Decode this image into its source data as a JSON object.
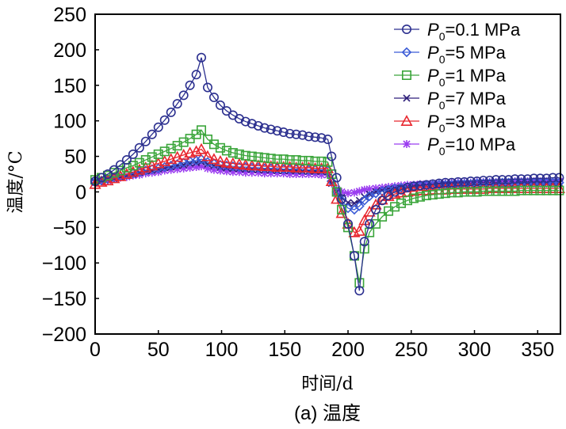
{
  "chart_data": {
    "type": "line",
    "title": "",
    "caption": "(a) 温度",
    "xlabel": "时间/d",
    "ylabel": "温度/°C",
    "xlim": [
      0,
      368
    ],
    "ylim": [
      -200,
      250
    ],
    "xticks": [
      0,
      50,
      100,
      150,
      200,
      250,
      300,
      350
    ],
    "xtick_labels": [
      "0",
      "50",
      "100",
      "150",
      "200",
      "250",
      "300",
      "350"
    ],
    "yticks": [
      250,
      200,
      150,
      100,
      50,
      0,
      -50,
      -100,
      -150,
      -200
    ],
    "ytick_labels": [
      "250",
      "200",
      "150",
      "100",
      "50",
      "0",
      "−50",
      "−100",
      "−150",
      "−200"
    ],
    "grid": false,
    "legend_position": "top-right",
    "x": [
      0,
      5,
      10,
      15,
      20,
      25,
      30,
      35,
      40,
      45,
      50,
      55,
      60,
      65,
      70,
      75,
      80,
      84,
      89,
      94,
      99,
      104,
      109,
      114,
      119,
      124,
      129,
      134,
      139,
      144,
      149,
      154,
      159,
      164,
      169,
      174,
      179,
      184,
      187,
      191,
      195,
      200,
      205,
      209,
      213,
      217,
      222,
      227,
      232,
      237,
      242,
      247,
      252,
      257,
      262,
      267,
      272,
      277,
      282,
      287,
      292,
      297,
      302,
      307,
      312,
      317,
      322,
      327,
      332,
      337,
      342,
      347,
      352,
      357,
      362,
      367
    ],
    "series": [
      {
        "name": "P0=0.1 MPa",
        "legend_main": "P",
        "legend_sub": "0",
        "legend_rest": "=0.1 MPa",
        "color": "#2b2f8f",
        "marker": "circle",
        "values": [
          15,
          20,
          25,
          31,
          38,
          45,
          53,
          62,
          71,
          81,
          91,
          101,
          112,
          124,
          136,
          150,
          165,
          189,
          147,
          133,
          122,
          114,
          108,
          103,
          99,
          96,
          93,
          90,
          88,
          86,
          84,
          82,
          81,
          80,
          78,
          77,
          76,
          74,
          50,
          20,
          -10,
          -45,
          -90,
          -139,
          -70,
          -45,
          -25,
          -12,
          -5,
          0,
          3,
          6,
          8,
          9,
          10,
          11,
          12,
          13,
          13,
          14,
          14,
          15,
          15,
          16,
          16,
          17,
          17,
          17,
          18,
          18,
          18,
          19,
          19,
          19,
          20,
          20
        ]
      },
      {
        "name": "P0=5 MPa",
        "legend_main": "P",
        "legend_sub": "0",
        "legend_rest": "=5 MPa",
        "color": "#3b5bd6",
        "marker": "diamond",
        "values": [
          14,
          16,
          18,
          20,
          22,
          24,
          26,
          28,
          30,
          32,
          33,
          35,
          37,
          39,
          41,
          43,
          44,
          46,
          42,
          40,
          38,
          37,
          36,
          35,
          35,
          34,
          34,
          33,
          33,
          33,
          32,
          32,
          32,
          32,
          31,
          31,
          31,
          30,
          15,
          0,
          -12,
          -23,
          -25,
          -20,
          -12,
          -6,
          -2,
          1,
          3,
          5,
          6,
          7,
          8,
          8,
          9,
          9,
          10,
          10,
          10,
          11,
          11,
          11,
          12,
          12,
          12,
          12,
          13,
          13,
          13,
          13,
          13,
          13,
          13,
          13,
          13,
          13
        ]
      },
      {
        "name": "P0=1 MPa",
        "legend_main": "P",
        "legend_sub": "0",
        "legend_rest": "=1 MPa",
        "color": "#3aa53a",
        "marker": "square",
        "values": [
          17,
          20,
          23,
          27,
          30,
          34,
          37,
          41,
          45,
          49,
          53,
          57,
          61,
          65,
          70,
          75,
          81,
          87,
          74,
          67,
          62,
          58,
          55,
          53,
          51,
          50,
          49,
          48,
          47,
          46,
          46,
          45,
          45,
          44,
          44,
          43,
          43,
          42,
          25,
          0,
          -25,
          -50,
          -90,
          -128,
          -80,
          -57,
          -45,
          -35,
          -27,
          -21,
          -16,
          -12,
          -9,
          -7,
          -5,
          -4,
          -3,
          -2,
          -1,
          -1,
          0,
          0,
          0,
          1,
          1,
          1,
          1,
          1,
          1,
          2,
          2,
          2,
          2,
          2,
          2,
          2
        ]
      },
      {
        "name": "P0=7 MPa",
        "legend_main": "P",
        "legend_sub": "0",
        "legend_rest": "=7 MPa",
        "color": "#2e1f7a",
        "marker": "x",
        "values": [
          14,
          16,
          17,
          19,
          21,
          23,
          25,
          27,
          29,
          30,
          32,
          34,
          35,
          37,
          38,
          40,
          41,
          42,
          39,
          37,
          35,
          34,
          33,
          33,
          32,
          32,
          31,
          31,
          31,
          30,
          30,
          30,
          30,
          29,
          29,
          29,
          29,
          28,
          12,
          0,
          -8,
          -15,
          -16,
          -12,
          -7,
          -3,
          0,
          2,
          4,
          5,
          6,
          7,
          8,
          8,
          9,
          9,
          10,
          10,
          10,
          11,
          11,
          11,
          11,
          12,
          12,
          12,
          12,
          12,
          12,
          13,
          13,
          13,
          13,
          13,
          13,
          13
        ]
      },
      {
        "name": "P0=3 MPa",
        "legend_main": "P",
        "legend_sub": "0",
        "legend_rest": "=3 MPa",
        "color": "#e8262e",
        "marker": "triangle",
        "values": [
          11,
          14,
          16,
          19,
          22,
          25,
          28,
          31,
          34,
          37,
          40,
          43,
          46,
          49,
          52,
          55,
          57,
          60,
          50,
          46,
          43,
          41,
          40,
          39,
          38,
          37,
          37,
          36,
          36,
          35,
          35,
          35,
          34,
          34,
          34,
          33,
          33,
          33,
          15,
          -10,
          -30,
          -45,
          -57,
          -55,
          -40,
          -28,
          -18,
          -11,
          -6,
          -3,
          -1,
          0,
          1,
          2,
          2,
          3,
          3,
          3,
          4,
          4,
          4,
          4,
          4,
          4,
          5,
          5,
          5,
          5,
          5,
          5,
          5,
          5,
          5,
          5,
          5,
          5
        ]
      },
      {
        "name": "P0=10 MPa",
        "legend_main": "P",
        "legend_sub": "0",
        "legend_rest": "=10 MPa",
        "color": "#9b3df0",
        "marker": "asterisk",
        "values": [
          13,
          15,
          16,
          18,
          20,
          21,
          23,
          24,
          26,
          27,
          28,
          30,
          31,
          32,
          33,
          34,
          35,
          36,
          33,
          31,
          30,
          29,
          28,
          28,
          27,
          27,
          27,
          26,
          26,
          26,
          26,
          25,
          25,
          25,
          25,
          25,
          24,
          24,
          12,
          4,
          0,
          -2,
          -1,
          1,
          3,
          4,
          5,
          6,
          7,
          8,
          9,
          10,
          10,
          11,
          11,
          12,
          12,
          12,
          13,
          13,
          13,
          13,
          14,
          14,
          14,
          14,
          14,
          14,
          15,
          15,
          15,
          15,
          15,
          15,
          15,
          15
        ]
      }
    ]
  }
}
